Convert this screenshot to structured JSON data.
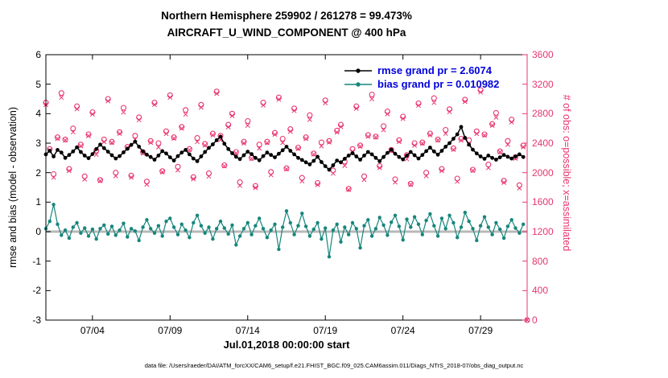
{
  "figure": {
    "title_line1": "Northern Hemisphere 259902 / 261278 = 99.473%",
    "title_line2": "AIRCRAFT_U_WIND_COMPONENT @ 400 hPa",
    "xlabel": "Jul.01,2018 00:00:00 start",
    "ylabel_left": "rmse and bias (model - observation)",
    "ylabel_right": "# of obs: o=possible; x=assimilated",
    "legend_rmse": "rmse grand pr = 2.6074",
    "legend_bias": "bias grand pr = 0.010982",
    "caption": "data file: /Users/raeder/DAI/ATM_forcXX/CAM6_setup/f.e21.FHIST_BGC.f09_025.CAM6assim.011/Diags_NTrS_2018-07/obs_diag_output.nc"
  },
  "colors": {
    "obs_pink": "#e8356d",
    "bias_teal": "#17867c",
    "rmse_black": "#000000",
    "legend_blue": "#0000dd",
    "zero_line_gray": "#b8b8b8"
  },
  "chart_data": {
    "type": "line+scatter",
    "stats": {
      "obs_assimilated_total": 259902,
      "obs_possible_total": 261278,
      "percent_assimilated": 99.473
    },
    "grand_rmse": 2.6074,
    "grand_bias": 0.010982,
    "x_axis": {
      "label": "Jul.01,2018 00:00:00 start",
      "min_day": 1,
      "max_day": 32,
      "start_day": 1,
      "step_days": 0.25,
      "num_points": 125,
      "tick_days": [
        4,
        9,
        14,
        19,
        24,
        29
      ],
      "tick_labels": [
        "07/04",
        "07/09",
        "07/14",
        "07/19",
        "07/24",
        "07/29"
      ]
    },
    "left_axis": {
      "label": "rmse and bias (model - observation)",
      "min": -3,
      "max": 6,
      "ticks": [
        -3,
        -2,
        -1,
        0,
        1,
        2,
        3,
        4,
        5,
        6
      ]
    },
    "right_axis": {
      "label": "# of obs: o=possible; x=assimilated",
      "min": 0,
      "max": 3600,
      "ticks": [
        0,
        400,
        800,
        1200,
        1600,
        2000,
        2400,
        2800,
        3200,
        3600
      ]
    },
    "zero_line": 0,
    "series": [
      {
        "name": "rmse",
        "axis": "left",
        "marker": "dot",
        "color": "#000000",
        "values": [
          2.62,
          2.74,
          2.55,
          2.77,
          2.68,
          2.5,
          2.6,
          2.72,
          2.86,
          2.7,
          2.58,
          2.49,
          2.63,
          2.8,
          2.95,
          2.83,
          2.71,
          2.59,
          2.48,
          2.56,
          2.69,
          2.81,
          2.94,
          3.05,
          2.88,
          2.72,
          2.61,
          2.53,
          2.44,
          2.58,
          2.73,
          2.65,
          2.52,
          2.41,
          2.56,
          2.68,
          2.77,
          2.62,
          2.48,
          2.39,
          2.55,
          2.7,
          2.84,
          2.96,
          3.1,
          3.22,
          2.98,
          2.8,
          2.66,
          2.54,
          2.46,
          2.59,
          2.71,
          2.63,
          2.5,
          2.42,
          2.56,
          2.68,
          2.6,
          2.52,
          2.64,
          2.76,
          2.88,
          2.74,
          2.62,
          2.5,
          2.43,
          2.35,
          2.28,
          2.4,
          2.54,
          2.36,
          2.22,
          2.1,
          2.25,
          2.41,
          2.35,
          2.47,
          2.58,
          2.66,
          2.55,
          2.44,
          2.58,
          2.7,
          2.62,
          2.5,
          2.39,
          2.53,
          2.67,
          2.78,
          2.64,
          2.53,
          2.45,
          2.58,
          2.7,
          2.59,
          2.48,
          2.6,
          2.73,
          2.85,
          2.72,
          2.61,
          2.74,
          2.88,
          3.0,
          3.15,
          3.3,
          3.55,
          3.18,
          2.95,
          2.78,
          2.65,
          2.55,
          2.47,
          2.58,
          2.5,
          2.44,
          2.52,
          2.6,
          2.54,
          2.48,
          2.55,
          2.62,
          2.53,
          null
        ]
      },
      {
        "name": "bias",
        "axis": "left",
        "marker": "dot",
        "color": "#17867c",
        "values": [
          0.1,
          0.35,
          0.92,
          0.25,
          -0.12,
          0.05,
          -0.22,
          0.15,
          0.3,
          -0.05,
          0.12,
          -0.15,
          0.08,
          -0.25,
          0.1,
          0.22,
          -0.08,
          0.18,
          -0.12,
          0.05,
          0.28,
          -0.18,
          0.1,
          0.02,
          -0.3,
          0.15,
          0.4,
          0.1,
          -0.05,
          0.2,
          -0.15,
          0.35,
          0.45,
          0.15,
          -0.1,
          0.25,
          0.05,
          -0.2,
          0.3,
          0.55,
          0.2,
          -0.05,
          0.15,
          -0.25,
          0.1,
          0.35,
          0.12,
          -0.08,
          0.22,
          -0.45,
          -0.15,
          0.1,
          0.3,
          -0.1,
          0.2,
          0.45,
          0.1,
          -0.2,
          0.05,
          0.25,
          -0.6,
          0.15,
          0.7,
          0.3,
          -0.1,
          0.2,
          0.62,
          0.18,
          -0.15,
          0.08,
          0.3,
          -0.25,
          0.12,
          -0.85,
          0.05,
          0.25,
          -0.35,
          0.15,
          -0.1,
          0.3,
          0.1,
          -0.55,
          0.2,
          0.4,
          -0.15,
          0.1,
          0.48,
          0.22,
          -0.12,
          0.32,
          0.55,
          0.18,
          -0.28,
          0.42,
          0.15,
          0.5,
          0.25,
          -0.1,
          0.38,
          0.6,
          0.2,
          -0.15,
          0.45,
          0.1,
          0.55,
          0.3,
          -0.2,
          0.15,
          0.65,
          0.35,
          0.1,
          -0.3,
          0.2,
          0.5,
          0.15,
          -0.1,
          0.3,
          0.08,
          -0.22,
          0.18,
          0.4,
          0.12,
          -0.05,
          0.25,
          null
        ]
      },
      {
        "name": "obs_possible",
        "axis": "right",
        "marker": "o",
        "color": "#e8356d",
        "values": [
          2950,
          2320,
          1980,
          2480,
          3080,
          2450,
          2050,
          2600,
          2900,
          2380,
          1950,
          2520,
          2820,
          2300,
          1900,
          2450,
          3000,
          2420,
          2000,
          2550,
          2880,
          2350,
          1960,
          2500,
          2750,
          2280,
          1880,
          2430,
          2950,
          2400,
          2020,
          2560,
          3050,
          2480,
          2080,
          2620,
          2850,
          2320,
          1940,
          2470,
          2920,
          2390,
          1990,
          2530,
          3100,
          2500,
          2100,
          2650,
          2800,
          2280,
          1870,
          2420,
          2700,
          2200,
          1820,
          2380,
          2950,
          2420,
          2010,
          2540,
          3020,
          2460,
          2060,
          2590,
          2870,
          2340,
          1930,
          2480,
          2780,
          2260,
          1860,
          2410,
          2980,
          2430,
          2030,
          2570,
          2650,
          2150,
          1780,
          2320,
          2900,
          2370,
          1950,
          2510,
          3060,
          2490,
          2090,
          2630,
          2830,
          2310,
          1910,
          2440,
          2760,
          2240,
          1850,
          2400,
          2940,
          2410,
          2000,
          2530,
          3010,
          2450,
          2050,
          2580,
          2860,
          2330,
          1920,
          2460,
          2990,
          2440,
          2040,
          2560,
          3120,
          2520,
          2110,
          2660,
          2810,
          2290,
          1890,
          2430,
          2720,
          2210,
          1830,
          2370,
          0
        ]
      },
      {
        "name": "obs_assimilated",
        "axis": "right",
        "marker": "x",
        "color": "#e8356d",
        "values": [
          2920,
          2305,
          1935,
          2460,
          3020,
          2440,
          2025,
          2550,
          2865,
          2362,
          1910,
          2498,
          2792,
          2245,
          1888,
          2418,
          2970,
          2405,
          1955,
          2530,
          2820,
          2340,
          1935,
          2450,
          2715,
          2262,
          1840,
          2408,
          2922,
          2345,
          2008,
          2528,
          3020,
          2465,
          2035,
          2600,
          2790,
          2310,
          1915,
          2420,
          2885,
          2372,
          1950,
          2508,
          3072,
          2445,
          2088,
          2618,
          2770,
          2265,
          1825,
          2400,
          2640,
          2190,
          1795,
          2330,
          2915,
          2402,
          1970,
          2518,
          2992,
          2405,
          2048,
          2558,
          2840,
          2325,
          1885,
          2460,
          2720,
          2250,
          1835,
          2360,
          2945,
          2412,
          1990,
          2548,
          2622,
          2095,
          1768,
          2288,
          2870,
          2355,
          1905,
          2490,
          3000,
          2480,
          2065,
          2580,
          2795,
          2292,
          1870,
          2418,
          2732,
          2185,
          1838,
          2368,
          2910,
          2395,
          1955,
          2510,
          2950,
          2440,
          2025,
          2530,
          2825,
          2312,
          1880,
          2438,
          2962,
          2385,
          2028,
          2528,
          3090,
          2505,
          2065,
          2640,
          2750,
          2280,
          1865,
          2380,
          2685,
          2192,
          1790,
          2348,
          0
        ]
      }
    ]
  }
}
